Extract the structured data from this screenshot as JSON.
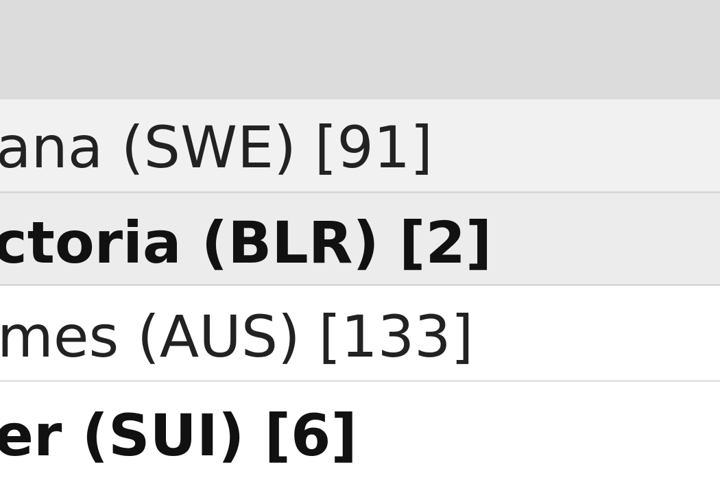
{
  "draw": {
    "entries": [
      {
        "text": "ana (SWE) [91]",
        "bold": false
      },
      {
        "text": "ctoria (BLR) [2]",
        "bold": true
      },
      {
        "text": "mes (AUS) [133]",
        "bold": false
      },
      {
        "text": "er (SUI) [6]",
        "bold": true
      }
    ]
  }
}
